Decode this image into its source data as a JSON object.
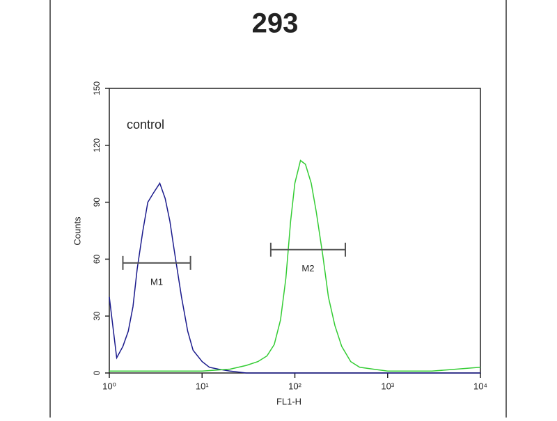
{
  "chart_data": {
    "type": "line",
    "title": "293",
    "xlabel": "FL1-H",
    "ylabel": "Counts",
    "xscale": "log",
    "xlim": [
      1,
      10000
    ],
    "ylim": [
      0,
      150
    ],
    "xticks": [
      {
        "value": 1,
        "label": "10⁰"
      },
      {
        "value": 10,
        "label": "10¹"
      },
      {
        "value": 100,
        "label": "10²"
      },
      {
        "value": 1000,
        "label": "10³"
      },
      {
        "value": 10000,
        "label": "10⁴"
      }
    ],
    "yticks": [
      0,
      30,
      60,
      90,
      120,
      150
    ],
    "annotation": "control",
    "series": [
      {
        "name": "control",
        "color": "#1a1a8c",
        "x": [
          1,
          1.2,
          1.4,
          1.6,
          1.8,
          2,
          2.3,
          2.6,
          3,
          3.5,
          4,
          4.5,
          5,
          6,
          7,
          8,
          10,
          12,
          15,
          20,
          30,
          50,
          100,
          200,
          500,
          1000,
          10000
        ],
        "values": [
          40,
          8,
          14,
          22,
          35,
          55,
          75,
          90,
          95,
          100,
          92,
          80,
          65,
          40,
          22,
          12,
          6,
          3,
          2,
          1,
          0,
          0,
          0,
          0,
          0,
          0,
          0
        ]
      },
      {
        "color": "#33cc33",
        "x": [
          1,
          5,
          10,
          20,
          30,
          40,
          50,
          60,
          70,
          80,
          90,
          100,
          115,
          130,
          150,
          170,
          200,
          230,
          270,
          320,
          400,
          500,
          700,
          1000,
          3000,
          10000
        ],
        "values": [
          1,
          1,
          1,
          2,
          4,
          6,
          9,
          15,
          28,
          50,
          80,
          100,
          112,
          110,
          100,
          85,
          62,
          40,
          25,
          14,
          6,
          3,
          2,
          1,
          1,
          3
        ]
      }
    ],
    "gates": [
      {
        "label": "M1",
        "xlim": [
          1.4,
          7.5
        ],
        "y": 58
      },
      {
        "label": "M2",
        "xlim": [
          55,
          350
        ],
        "y": 65
      }
    ]
  }
}
